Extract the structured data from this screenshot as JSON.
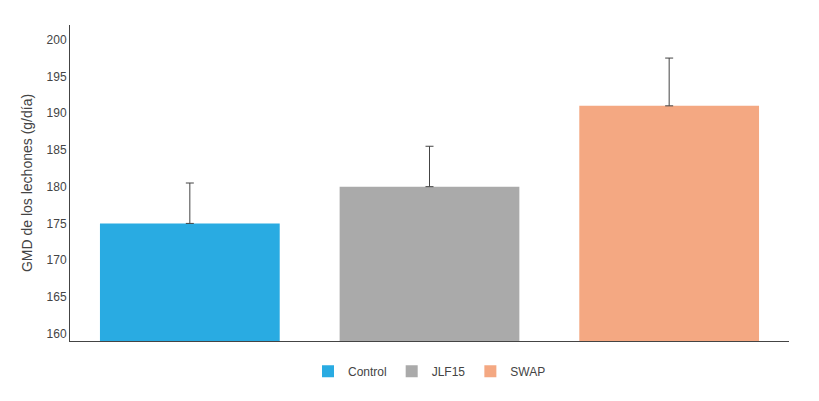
{
  "chart_data": {
    "type": "bar",
    "ylabel": "GMD de los lechones (g/día)",
    "categories": [
      "Control",
      "JLF15",
      "SWAP"
    ],
    "values": [
      175,
      180,
      191
    ],
    "errors_upper": [
      5.5,
      5.5,
      6.5
    ],
    "colors": [
      "#29ABE2",
      "#AAAAAA",
      "#F4A882"
    ],
    "ylim": [
      159,
      202
    ],
    "yticks": [
      160,
      165,
      170,
      175,
      180,
      185,
      190,
      195,
      200
    ],
    "grid": false,
    "legend": "bottom",
    "tick_labels": "y"
  }
}
